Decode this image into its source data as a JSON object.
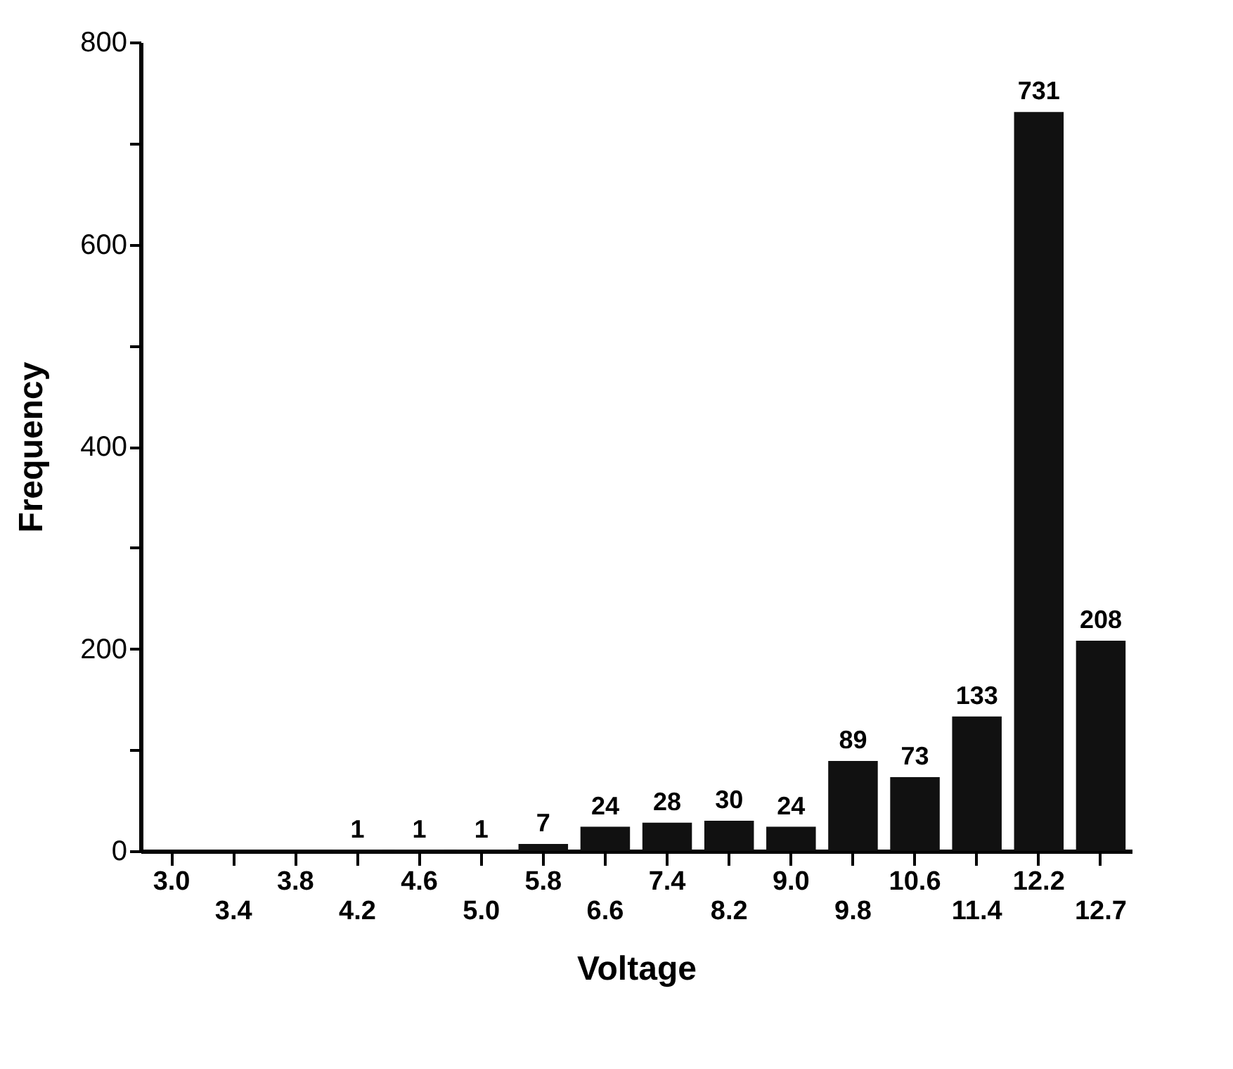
{
  "chart_data": {
    "type": "bar",
    "xlabel": "Voltage",
    "ylabel": "Frequency",
    "categories": [
      "3.0",
      "3.4",
      "3.8",
      "4.2",
      "4.6",
      "5.0",
      "5.8",
      "6.6",
      "7.4",
      "8.2",
      "9.0",
      "9.8",
      "10.6",
      "11.4",
      "12.2",
      "12.7"
    ],
    "values": [
      0,
      0,
      0,
      1,
      1,
      1,
      7,
      24,
      28,
      30,
      24,
      89,
      73,
      133,
      731,
      208
    ],
    "value_labels": [
      null,
      null,
      null,
      "1",
      "1",
      "1",
      "7",
      "24",
      "28",
      "30",
      "24",
      "89",
      "73",
      "133",
      "731",
      "208"
    ],
    "color": "#111111",
    "ylim": [
      0,
      800
    ],
    "yticks": [
      0,
      {
        "value": 100,
        "label": null
      },
      200,
      {
        "value": 300,
        "label": null
      },
      400,
      {
        "value": 500,
        "label": null
      },
      600,
      {
        "value": 700,
        "label": null
      },
      800
    ],
    "grid": false
  }
}
